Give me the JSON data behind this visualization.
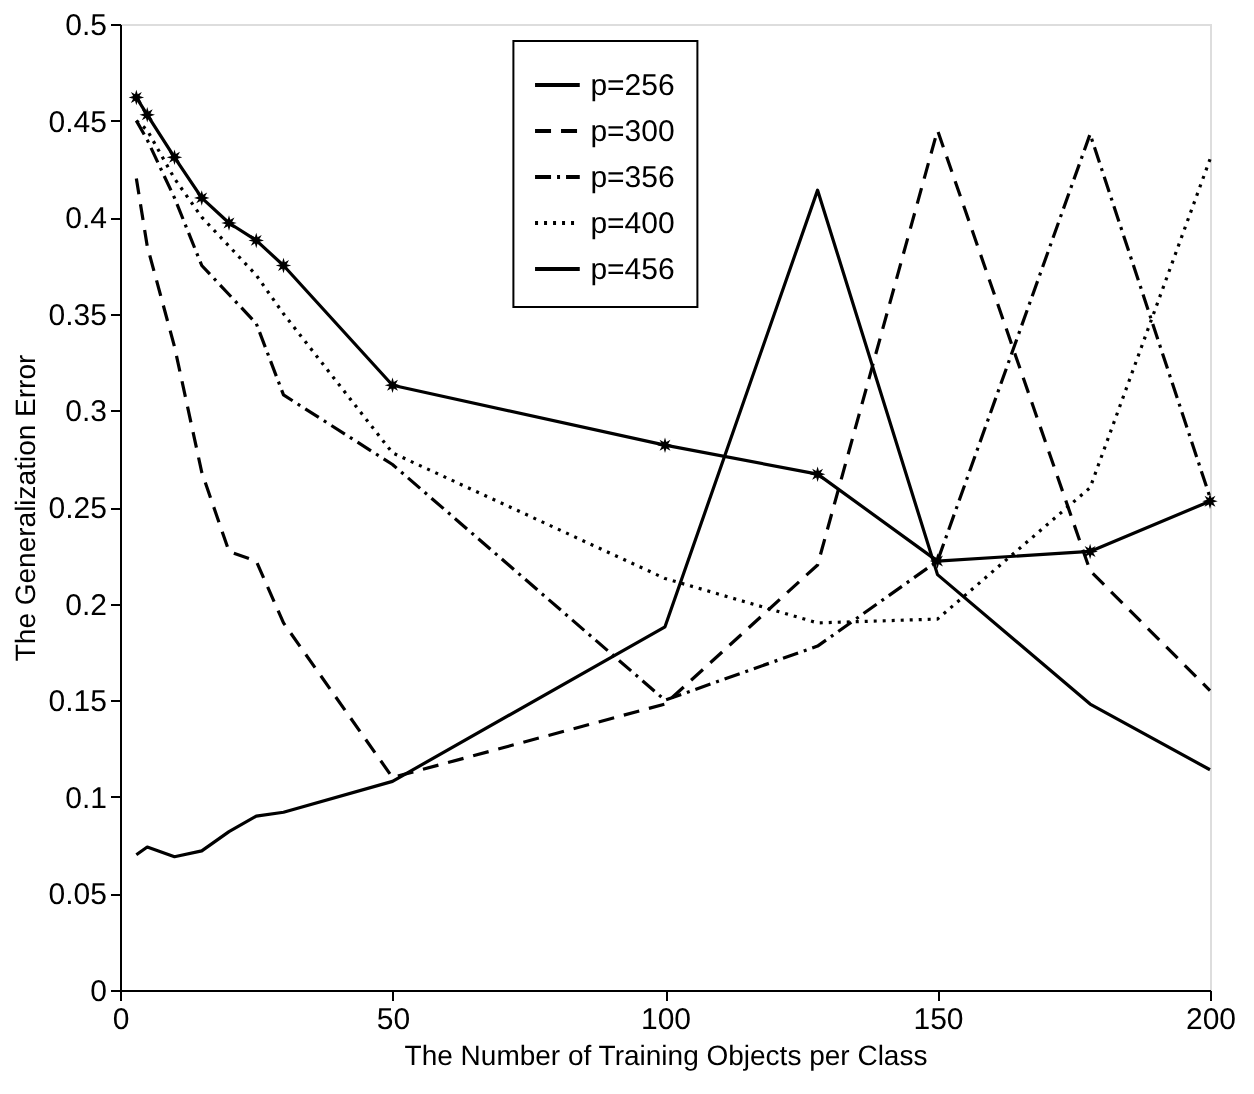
{
  "chart_data": {
    "type": "line",
    "xlabel": "The Number of Training Objects per Class",
    "ylabel": "The Generalization Error",
    "x": [
      3,
      5,
      10,
      15,
      20,
      25,
      30,
      50,
      100,
      128,
      150,
      178,
      200
    ],
    "series": [
      {
        "name": "p=256",
        "color": "#000000",
        "line_style": "solid",
        "marker": "none",
        "values": [
          0.07,
          0.074,
          0.069,
          0.072,
          0.082,
          0.09,
          0.092,
          0.108,
          0.188,
          0.414,
          0.215,
          0.148,
          0.114
        ]
      },
      {
        "name": "p=300",
        "color": "#000000",
        "line_style": "dashed",
        "marker": "none",
        "values": [
          0.42,
          0.385,
          0.333,
          0.268,
          0.227,
          0.222,
          0.19,
          0.11,
          0.148,
          0.22,
          0.445,
          0.217,
          0.155
        ]
      },
      {
        "name": "p=356",
        "color": "#000000",
        "line_style": "dashdot",
        "marker": "none",
        "values": [
          0.45,
          0.44,
          0.41,
          0.375,
          0.36,
          0.345,
          0.308,
          0.272,
          0.15,
          0.178,
          0.222,
          0.443,
          0.255
        ]
      },
      {
        "name": "p=400",
        "color": "#000000",
        "line_style": "dotted",
        "marker": "none",
        "values": [
          0.45,
          0.445,
          0.42,
          0.4,
          0.385,
          0.37,
          0.35,
          0.278,
          0.213,
          0.19,
          0.192,
          0.26,
          0.43
        ]
      },
      {
        "name": "p=456",
        "color": "#000000",
        "line_style": "solid",
        "marker": "star",
        "values": [
          0.462,
          0.453,
          0.431,
          0.41,
          0.397,
          0.388,
          0.375,
          0.313,
          0.282,
          0.267,
          0.222,
          0.227,
          0.253
        ]
      }
    ],
    "xlim": [
      0,
      200
    ],
    "xticks": [
      0,
      50,
      100,
      150,
      200
    ],
    "ylim": [
      0,
      0.5
    ],
    "yticks": [
      0,
      0.05,
      0.1,
      0.15,
      0.2,
      0.25,
      0.3,
      0.35,
      0.4,
      0.45,
      0.5
    ],
    "grid": false,
    "legend": "top"
  }
}
